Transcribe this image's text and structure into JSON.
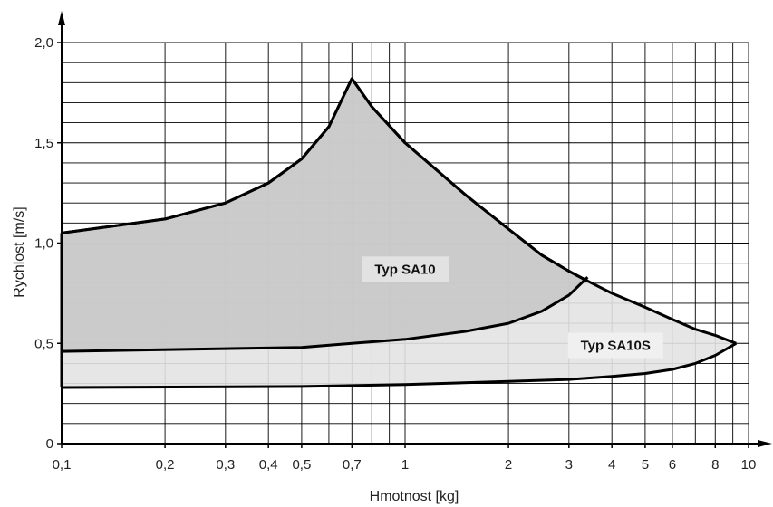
{
  "chart_data": {
    "type": "area",
    "xlabel": "Hmotnost [kg]",
    "ylabel": "Rychlost [m/s]",
    "x_scale": "log",
    "xlim": [
      0.1,
      10
    ],
    "ylim": [
      0,
      2.0
    ],
    "grid": true,
    "x_ticks": [
      {
        "value": 0.1,
        "label": "0,1"
      },
      {
        "value": 0.2,
        "label": "0,2"
      },
      {
        "value": 0.3,
        "label": "0,3"
      },
      {
        "value": 0.4,
        "label": "0,4"
      },
      {
        "value": 0.5,
        "label": "0,5"
      },
      {
        "value": 0.7,
        "label": "0,7"
      },
      {
        "value": 1,
        "label": "1"
      },
      {
        "value": 2,
        "label": "2"
      },
      {
        "value": 3,
        "label": "3"
      },
      {
        "value": 4,
        "label": "4"
      },
      {
        "value": 5,
        "label": "5"
      },
      {
        "value": 6,
        "label": "6"
      },
      {
        "value": 8,
        "label": "8"
      },
      {
        "value": 10,
        "label": "10"
      }
    ],
    "y_ticks": [
      {
        "value": 0,
        "label": "0"
      },
      {
        "value": 0.5,
        "label": "0,5"
      },
      {
        "value": 1.0,
        "label": "1,0"
      },
      {
        "value": 1.5,
        "label": "1,5"
      },
      {
        "value": 2.0,
        "label": "2,0"
      }
    ],
    "series": [
      {
        "name": "Typ SA10",
        "fill": "#c8c8c8",
        "upper": [
          [
            0.1,
            1.05
          ],
          [
            0.2,
            1.12
          ],
          [
            0.3,
            1.2
          ],
          [
            0.4,
            1.3
          ],
          [
            0.5,
            1.42
          ],
          [
            0.6,
            1.58
          ],
          [
            0.7,
            1.82
          ],
          [
            0.8,
            1.68
          ],
          [
            1.0,
            1.5
          ],
          [
            1.5,
            1.24
          ],
          [
            2.0,
            1.07
          ],
          [
            2.5,
            0.94
          ],
          [
            3.0,
            0.86
          ],
          [
            3.4,
            0.81
          ]
        ],
        "lower": [
          [
            0.1,
            0.46
          ],
          [
            0.5,
            0.48
          ],
          [
            0.7,
            0.5
          ],
          [
            1.0,
            0.52
          ],
          [
            1.5,
            0.56
          ],
          [
            2.0,
            0.6
          ],
          [
            2.5,
            0.66
          ],
          [
            3.0,
            0.74
          ],
          [
            3.4,
            0.83
          ]
        ]
      },
      {
        "name": "Typ SA10S",
        "fill": "#e3e3e3",
        "upper": [
          [
            0.1,
            1.05
          ],
          [
            0.2,
            1.12
          ],
          [
            0.3,
            1.2
          ],
          [
            0.4,
            1.3
          ],
          [
            0.5,
            1.42
          ],
          [
            0.6,
            1.58
          ],
          [
            0.7,
            1.82
          ],
          [
            0.8,
            1.68
          ],
          [
            1.0,
            1.5
          ],
          [
            1.5,
            1.24
          ],
          [
            2.0,
            1.07
          ],
          [
            2.5,
            0.94
          ],
          [
            3.0,
            0.86
          ],
          [
            3.5,
            0.8
          ],
          [
            4.0,
            0.75
          ],
          [
            5.0,
            0.68
          ],
          [
            6.0,
            0.62
          ],
          [
            7.0,
            0.57
          ],
          [
            8.0,
            0.54
          ],
          [
            9.2,
            0.5
          ]
        ],
        "lower": [
          [
            0.1,
            0.28
          ],
          [
            0.5,
            0.285
          ],
          [
            1.0,
            0.295
          ],
          [
            2.0,
            0.31
          ],
          [
            3.0,
            0.32
          ],
          [
            4.0,
            0.335
          ],
          [
            5.0,
            0.35
          ],
          [
            6.0,
            0.37
          ],
          [
            7.0,
            0.4
          ],
          [
            8.0,
            0.44
          ],
          [
            9.2,
            0.5
          ]
        ]
      }
    ],
    "annotations": [
      {
        "text": "Typ SA10",
        "x": 1.0,
        "y": 0.87
      },
      {
        "text": "Typ SA10S",
        "x": 4.1,
        "y": 0.49
      }
    ]
  }
}
